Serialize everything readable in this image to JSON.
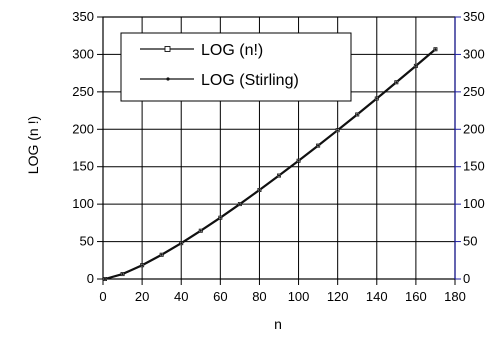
{
  "chart_data": {
    "type": "line",
    "title": "",
    "xlabel": "n",
    "ylabel": "LOG (n !)",
    "xlim": [
      0,
      180
    ],
    "ylim": [
      0,
      350
    ],
    "x_ticks": [
      0,
      20,
      40,
      60,
      80,
      100,
      120,
      140,
      160,
      180
    ],
    "y_ticks": [
      0,
      50,
      100,
      150,
      200,
      250,
      300,
      350
    ],
    "right_y_ticks": [
      0,
      50,
      100,
      150,
      200,
      250,
      300,
      350
    ],
    "grid": true,
    "legend_position": "top-left",
    "legend": [
      {
        "label": "LOG (n!)",
        "marker": "open-square"
      },
      {
        "label": "LOG (Stirling)",
        "marker": "dot"
      }
    ],
    "series": [
      {
        "name": "LOG (n!)",
        "x": [
          1,
          10,
          20,
          30,
          40,
          50,
          60,
          70,
          80,
          90,
          100,
          110,
          120,
          130,
          140,
          150,
          160,
          170
        ],
        "y": [
          0,
          6.6,
          18.4,
          32.4,
          47.9,
          64.5,
          81.9,
          100.1,
          118.9,
          138.2,
          158.0,
          178.2,
          198.8,
          219.8,
          241.1,
          262.8,
          284.7,
          306.9
        ]
      },
      {
        "name": "LOG (Stirling)",
        "x": [
          1,
          10,
          20,
          30,
          40,
          50,
          60,
          70,
          80,
          90,
          100,
          110,
          120,
          130,
          140,
          150,
          160,
          170
        ],
        "y": [
          0,
          6.6,
          18.4,
          32.4,
          47.9,
          64.5,
          81.9,
          100.1,
          118.9,
          138.2,
          158.0,
          178.2,
          198.8,
          219.8,
          241.1,
          262.8,
          284.7,
          306.9
        ]
      }
    ],
    "colors": {
      "series": "#111111",
      "left_axis": "#000000",
      "right_axis": "#1f1f9f",
      "grid": "#000000"
    }
  }
}
